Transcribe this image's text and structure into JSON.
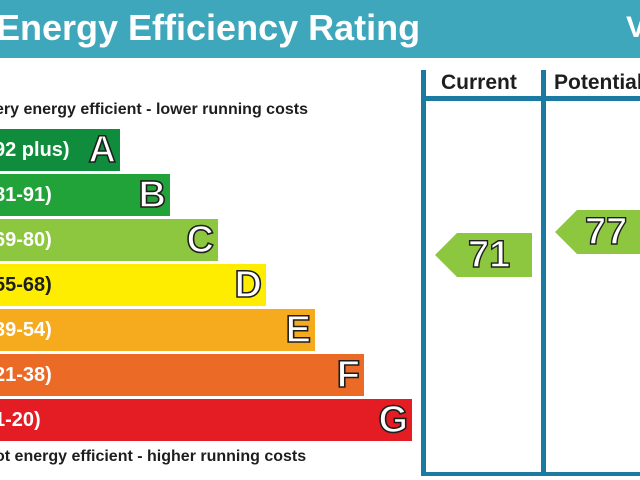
{
  "header": {
    "title": "Energy Efficiency Rating",
    "extra": "V"
  },
  "captions": {
    "top": "ery energy efficient - lower running costs",
    "bottom": "ot energy efficient - higher running costs"
  },
  "columns": {
    "current_label": "Current",
    "potential_label": "Potential"
  },
  "colors": {
    "header": "#3fa7bb",
    "border": "#1b7aa1",
    "A": "#0f8d3d",
    "B": "#22a339",
    "C": "#8dc63f",
    "D": "#ffed00",
    "E": "#f6ab1e",
    "F": "#ea6a26",
    "G": "#e31d23"
  },
  "chart_data": {
    "type": "bar",
    "title": "Energy Efficiency Rating",
    "bands": [
      {
        "letter": "A",
        "range": "92 plus)"
      },
      {
        "letter": "B",
        "range": "81-91)"
      },
      {
        "letter": "C",
        "range": "69-80)"
      },
      {
        "letter": "D",
        "range": "55-68)"
      },
      {
        "letter": "E",
        "range": "39-54)"
      },
      {
        "letter": "F",
        "range": "21-38)"
      },
      {
        "letter": "G",
        "range": "1-20)"
      }
    ],
    "current": {
      "value": "71",
      "band": "C"
    },
    "potential": {
      "value": "77",
      "band": "C"
    }
  }
}
